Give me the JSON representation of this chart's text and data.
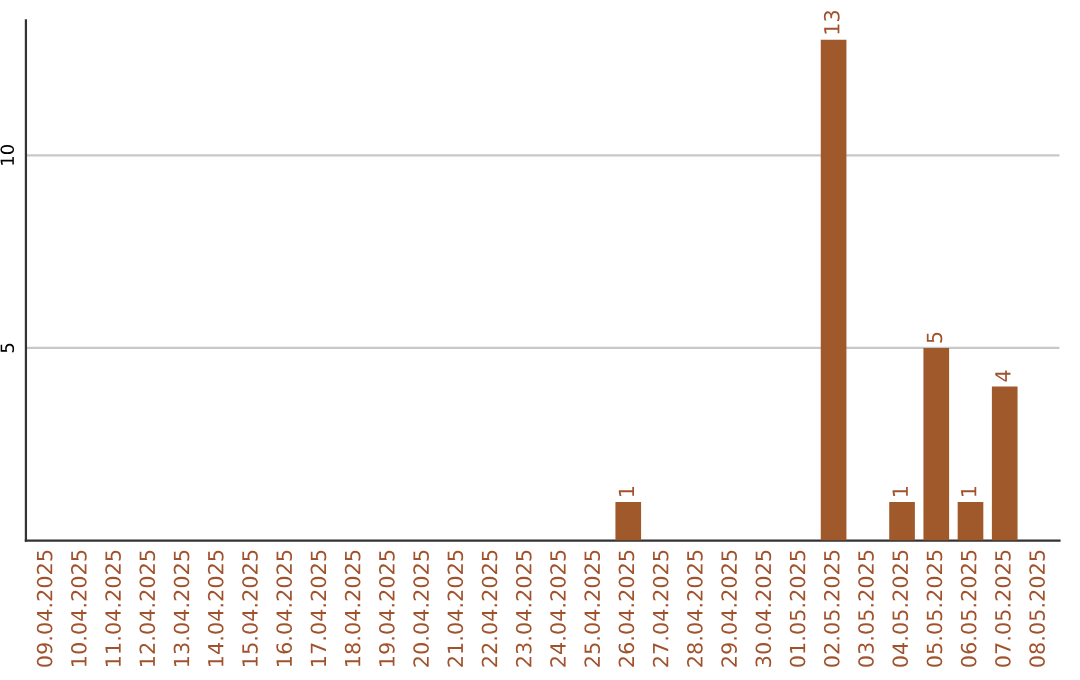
{
  "chart_data": {
    "type": "bar",
    "categories": [
      "09.04.2025",
      "10.04.2025",
      "11.04.2025",
      "12.04.2025",
      "13.04.2025",
      "14.04.2025",
      "15.04.2025",
      "16.04.2025",
      "17.04.2025",
      "18.04.2025",
      "19.04.2025",
      "20.04.2025",
      "21.04.2025",
      "22.04.2025",
      "23.04.2025",
      "24.04.2025",
      "25.04.2025",
      "26.04.2025",
      "27.04.2025",
      "28.04.2025",
      "29.04.2025",
      "30.04.2025",
      "01.05.2025",
      "02.05.2025",
      "03.05.2025",
      "04.05.2025",
      "05.05.2025",
      "06.05.2025",
      "07.05.2025",
      "08.05.2025"
    ],
    "values": [
      0,
      0,
      0,
      0,
      0,
      0,
      0,
      0,
      0,
      0,
      0,
      0,
      0,
      0,
      0,
      0,
      0,
      1,
      0,
      0,
      0,
      0,
      0,
      13,
      0,
      1,
      5,
      1,
      4,
      0
    ],
    "value_labels": [
      null,
      null,
      null,
      null,
      null,
      null,
      null,
      null,
      null,
      null,
      null,
      null,
      null,
      null,
      null,
      null,
      null,
      "1",
      null,
      null,
      null,
      null,
      null,
      "13",
      null,
      "1",
      "5",
      "1",
      "4",
      null
    ],
    "color": "#a0592a",
    "ylim": [
      0,
      13.5
    ],
    "yticks": [
      5,
      10
    ],
    "grid": "y",
    "legend": false
  }
}
